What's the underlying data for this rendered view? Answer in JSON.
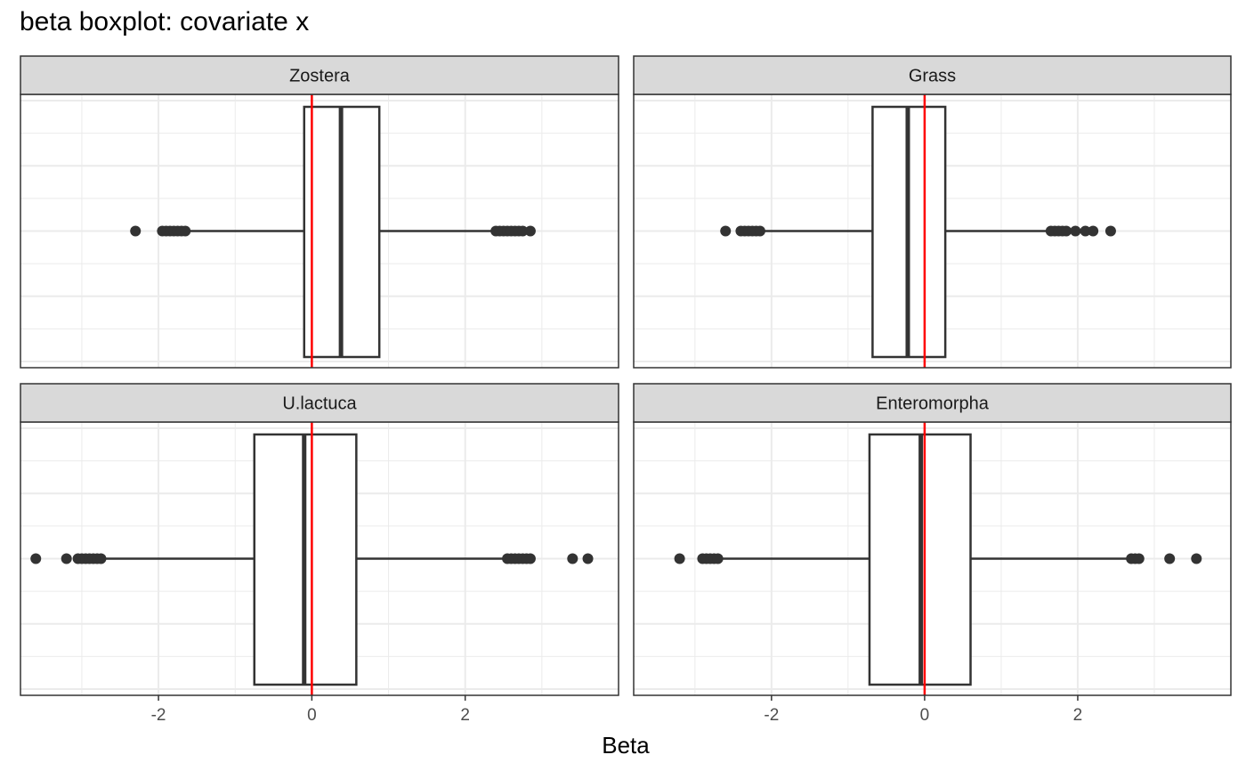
{
  "chart_data": {
    "type": "boxplot",
    "title": "beta boxplot: covariate x",
    "xlabel": "Beta",
    "ylabel": "",
    "xlim": [
      -3.8,
      4.0
    ],
    "xticks": [
      -2,
      0,
      2
    ],
    "xtick_labels": [
      "-2",
      "0",
      "2"
    ],
    "grid": true,
    "reference_line": {
      "x": 0,
      "color": "#ff0000"
    },
    "colors": {
      "strip_fill": "#d9d9d9",
      "box_stroke": "#333333",
      "grid": "#ebebeb",
      "reference": "#ff0000"
    },
    "panels": [
      {
        "name": "Zostera",
        "min": -1.6,
        "q1": -0.1,
        "median": 0.38,
        "q3": 0.88,
        "max": 2.35,
        "outliers": [
          -2.3,
          -1.95,
          -1.9,
          -1.85,
          -1.8,
          -1.75,
          -1.7,
          -1.65,
          2.4,
          2.45,
          2.5,
          2.55,
          2.6,
          2.65,
          2.7,
          2.75,
          2.85
        ]
      },
      {
        "name": "Grass",
        "min": -2.1,
        "q1": -0.68,
        "median": -0.22,
        "q3": 0.27,
        "max": 1.65,
        "outliers": [
          -2.6,
          -2.4,
          -2.35,
          -2.3,
          -2.25,
          -2.2,
          -2.15,
          1.65,
          1.7,
          1.75,
          1.8,
          1.85,
          1.97,
          2.1,
          2.2,
          2.43
        ]
      },
      {
        "name": "U.lactuca",
        "min": -2.7,
        "q1": -0.75,
        "median": -0.1,
        "q3": 0.58,
        "max": 2.55,
        "outliers": [
          -3.6,
          -3.2,
          -3.05,
          -3.0,
          -2.95,
          -2.9,
          -2.85,
          -2.8,
          -2.75,
          2.55,
          2.6,
          2.65,
          2.7,
          2.75,
          2.8,
          2.85,
          3.4,
          3.6
        ]
      },
      {
        "name": "Enteromorpha",
        "min": -2.7,
        "q1": -0.72,
        "median": -0.05,
        "q3": 0.6,
        "max": 2.65,
        "outliers": [
          -3.2,
          -2.9,
          -2.85,
          -2.8,
          -2.75,
          -2.7,
          2.7,
          2.75,
          2.8,
          3.2,
          3.55
        ]
      }
    ]
  }
}
